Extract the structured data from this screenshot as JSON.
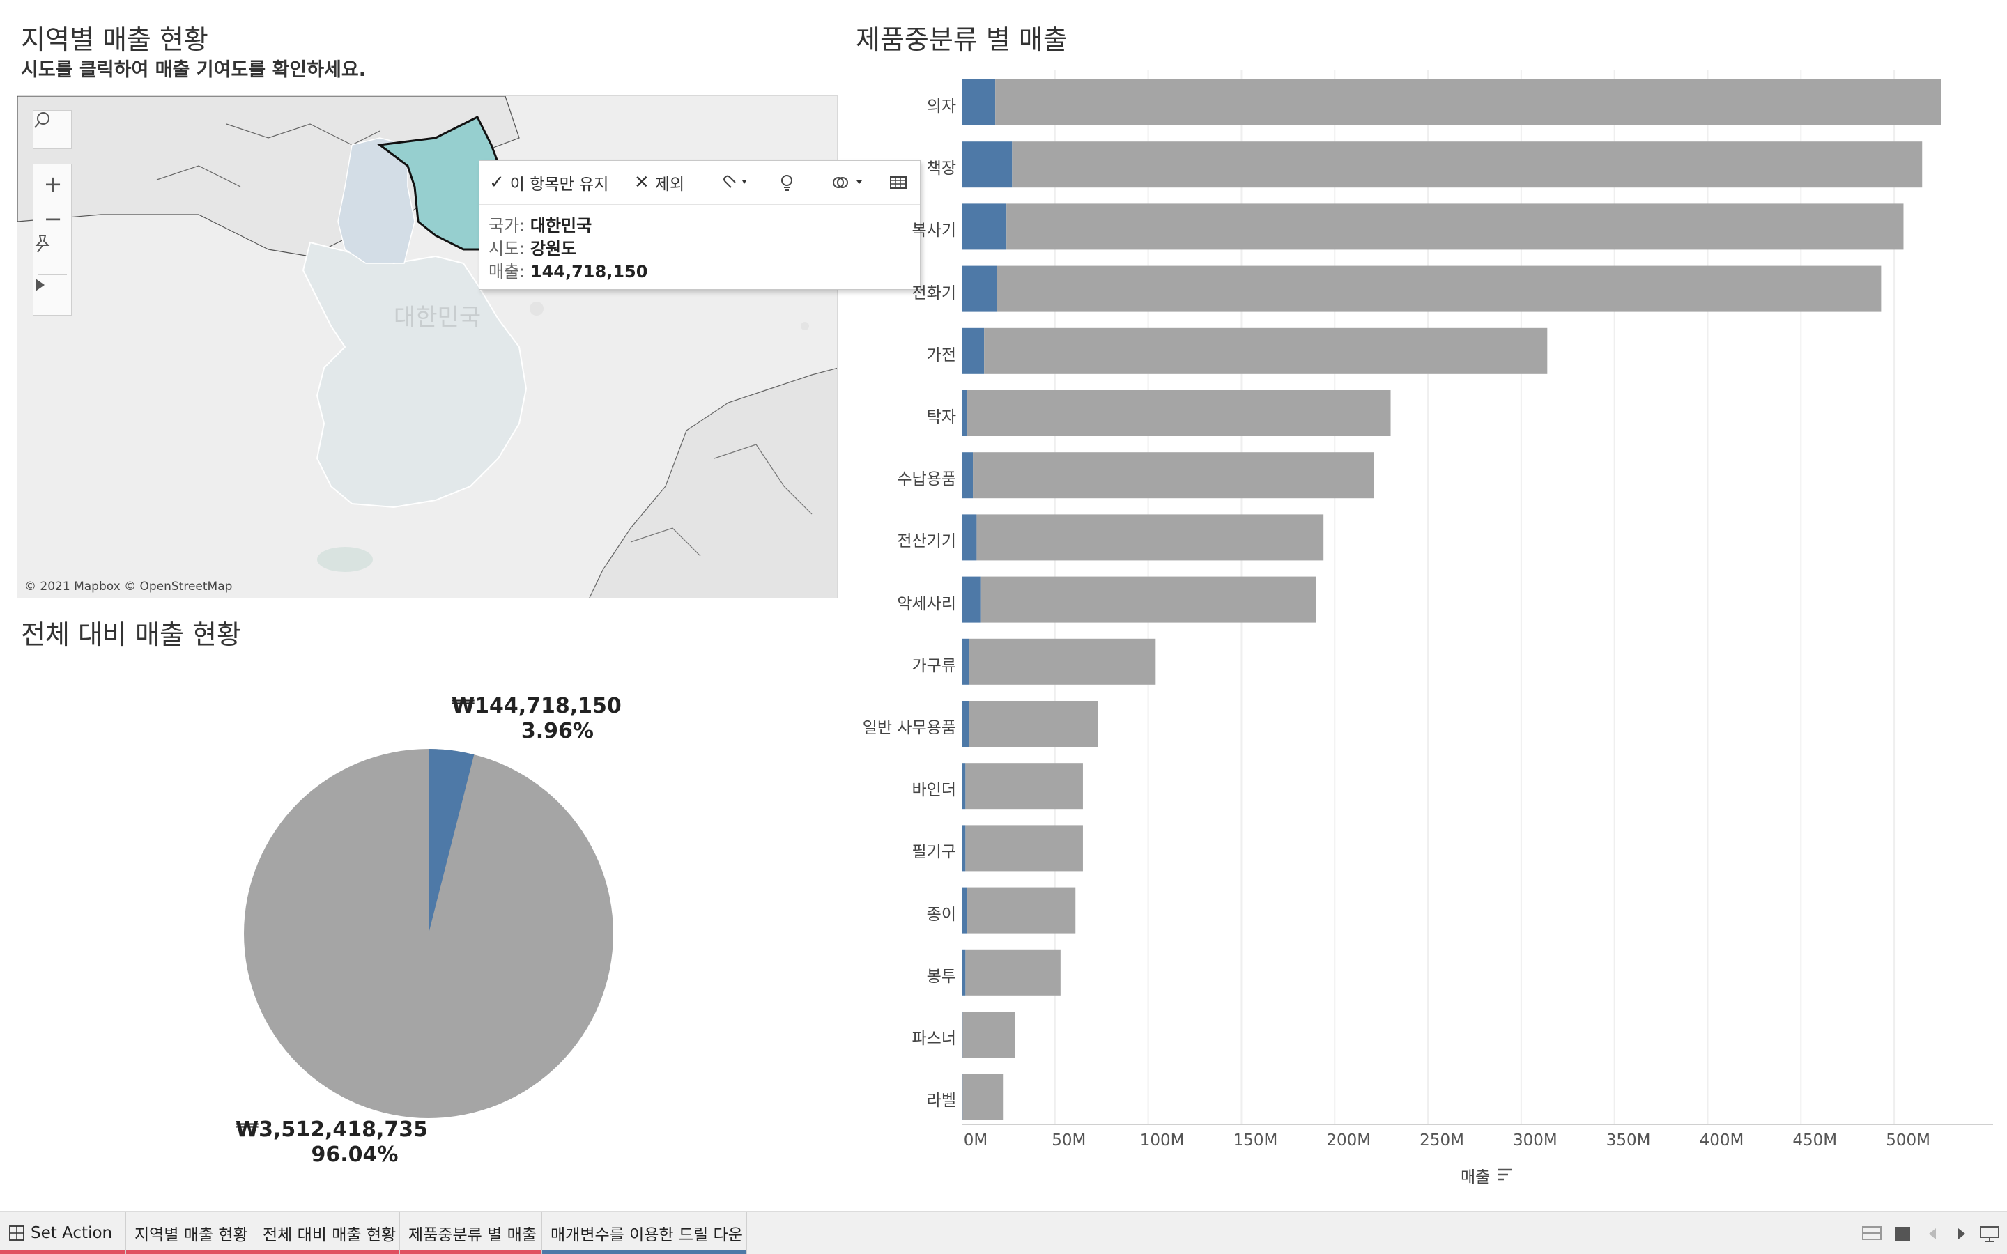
{
  "map_section": {
    "title": "지역별 매출 현황",
    "subtitle": "시도를 클릭하여 매출 기여도를 확인하세요.",
    "country_label": "대한민국",
    "credit": "© 2021 Mapbox © OpenStreetMap",
    "controls": {
      "search_icon": "magnifier-icon",
      "zoom_in": "+",
      "zoom_out": "−",
      "pin_icon": "pin-icon",
      "expand_icon": "play-arrow-icon"
    },
    "selected_region_color": "#96cfcf"
  },
  "tooltip": {
    "keep_only_label": "이 항목만 유지",
    "exclude_label": "제외",
    "rows": [
      {
        "key": "국가:",
        "value": "대한민국"
      },
      {
        "key": "시도:",
        "value": "강원도"
      },
      {
        "key": "매출:",
        "value": "144,718,150"
      }
    ]
  },
  "pie_section": {
    "title": "전체 대비 매출 현황",
    "slices": [
      {
        "amount": "₩144,718,150",
        "percent": "3.96%",
        "value": 144718150,
        "share": 0.0396,
        "color": "#4e79a7"
      },
      {
        "amount": "₩3,512,418,735",
        "percent": "96.04%",
        "value": 3512418735,
        "share": 0.9604,
        "color": "#a5a5a5"
      }
    ]
  },
  "chart_data": {
    "type": "bar",
    "orientation": "horizontal",
    "stacked": true,
    "title": "제품중분류 별 매출",
    "xlabel": "매출",
    "categories": [
      "의자",
      "책장",
      "복사기",
      "전화기",
      "가전",
      "탁자",
      "수납용품",
      "전산기기",
      "악세사리",
      "가구류",
      "일반 사무용품",
      "바인더",
      "필기구",
      "종이",
      "봉투",
      "파스너",
      "라벨"
    ],
    "series": [
      {
        "values": [
          18,
          27,
          24,
          19,
          12,
          3,
          6,
          8,
          10,
          4,
          4,
          2,
          2,
          3,
          2,
          0.5,
          0.5
        ],
        "color": "#4e79a7"
      },
      {
        "values": [
          507,
          488,
          481,
          474,
          302,
          227,
          215,
          186,
          180,
          100,
          69,
          63,
          63,
          58,
          51,
          28,
          22
        ],
        "color": "#a5a5a5"
      }
    ],
    "ticks": [
      "0M",
      "50M",
      "100M",
      "150M",
      "200M",
      "250M",
      "300M",
      "350M",
      "400M",
      "450M",
      "500M"
    ],
    "xlim": [
      0,
      550
    ],
    "grid": true
  },
  "tabs": {
    "items": [
      {
        "label": "Set Action",
        "icon": "grid-icon",
        "color": "#e05060"
      },
      {
        "label": "지역별 매출 현황",
        "color": "#e05060"
      },
      {
        "label": "전체 대비 매출 현황",
        "color": "#e05060"
      },
      {
        "label": "제품중분류 별 매출",
        "color": "#e05060"
      },
      {
        "label": "매개변수를 이용한 드릴 다운",
        "color": "#4e79a7"
      }
    ]
  }
}
